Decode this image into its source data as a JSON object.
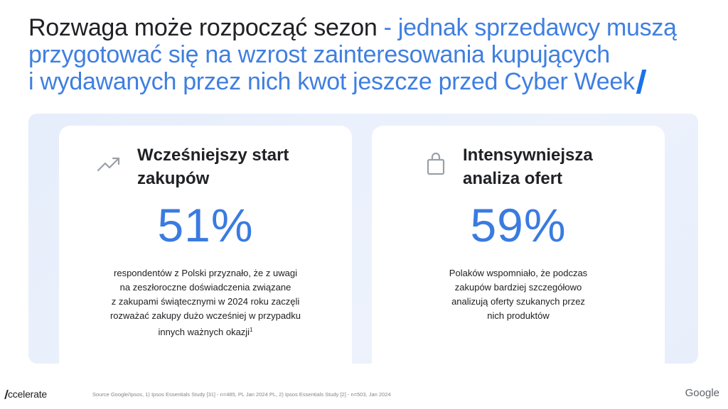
{
  "headline": {
    "part_dark": "Rozwaga może rozpocząć sezon",
    "part_blue_line1": " - jednak sprzedawcy muszą",
    "part_blue_line2": "przygotować się na wzrost zainteresowania kupujących",
    "part_blue_line3": "i wydawanych przez nich kwot jeszcze przed Cyber Week"
  },
  "cards": [
    {
      "icon": "trending-up-icon",
      "title_line1": "Wcześniejszy start",
      "title_line2": "zakupów",
      "stat": "51%",
      "desc_line1": "respondentów z Polski przyznało, że z uwagi",
      "desc_line2": "na zeszłoroczne doświadczenia związane",
      "desc_line3": "z zakupami świątecznymi w 2024 roku zaczęli",
      "desc_line4": "rozważać zakupy dużo wcześniej w przypadku",
      "desc_line5": "innych ważnych okazji",
      "footnote": "1"
    },
    {
      "icon": "shopping-bag-icon",
      "title_line1": "Intensywniejsza",
      "title_line2": "analiza ofert",
      "stat": "59%",
      "desc_line1": "Polaków wspomniało, że podczas",
      "desc_line2": "zakupów bardziej szczegółowo",
      "desc_line3": "analizują oferty szukanych przez",
      "desc_line4": "nich produktów"
    }
  ],
  "footer": {
    "brand": "ccelerate",
    "source": "Source Google/Ipsos, 1) Ipsos Essentials Study [31] - n=485, PL Jan 2024 PL, 2) Ipsos Essentials Study [2] - n=503, Jan 2024",
    "google": "Google"
  },
  "colors": {
    "accent_blue": "#3f7fe0",
    "stat_blue": "#3a7be0",
    "panel_bg": "#e8effb",
    "text_dark": "#202124"
  }
}
